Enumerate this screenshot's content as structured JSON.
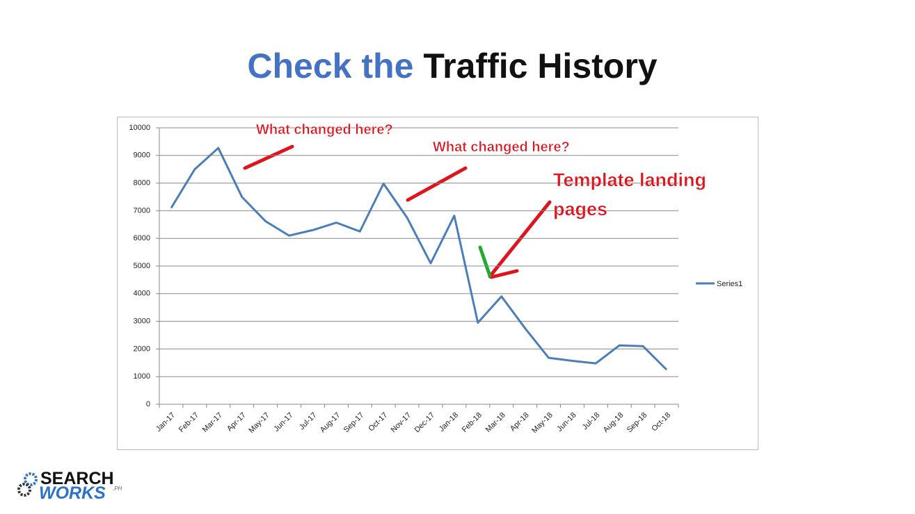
{
  "title_part1": "Check the",
  "title_part2": "Traffic History",
  "chart_data": {
    "type": "line",
    "categories": [
      "Jan-17",
      "Feb-17",
      "Mar-17",
      "Apr-17",
      "May-17",
      "Jun-17",
      "Jul-17",
      "Aug-17",
      "Sep-17",
      "Oct-17",
      "Nov-17",
      "Dec-17",
      "Jan-18",
      "Feb-18",
      "Mar-18",
      "Apr-18",
      "May-18",
      "Jun-18",
      "Jul-18",
      "Aug-18",
      "Sep-18",
      "Oct-18"
    ],
    "series": [
      {
        "name": "Series1",
        "color": "#4a7ebb",
        "values": [
          7100,
          8500,
          9270,
          7500,
          6620,
          6100,
          6300,
          6570,
          6250,
          7980,
          6750,
          5100,
          6820,
          2950,
          3900,
          2750,
          1680,
          1570,
          1480,
          2130,
          2100,
          1250
        ]
      }
    ],
    "ylim": [
      0,
      10000
    ],
    "yticks": [
      0,
      1000,
      2000,
      3000,
      4000,
      5000,
      6000,
      7000,
      8000,
      9000,
      10000
    ],
    "grid": true,
    "legend": "right",
    "annotations": [
      "What changed here?",
      "What changed here?",
      "Template landing",
      "pages"
    ]
  },
  "logo": {
    "line1": "SEARCH",
    "line2": "WORKS",
    "suffix": ".PH"
  }
}
